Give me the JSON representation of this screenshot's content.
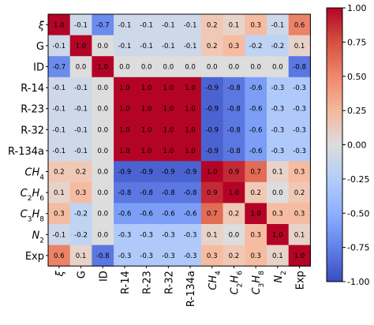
{
  "chart_data": {
    "type": "heatmap",
    "title": "",
    "xlabel": "",
    "ylabel": "",
    "row_labels": [
      "ξ",
      "G",
      "ID",
      "R-14",
      "R-23",
      "R-32",
      "R-134a",
      "CH4",
      "C2H6",
      "C3H8",
      "N2",
      "Exp"
    ],
    "col_labels": [
      "ξ",
      "G",
      "ID",
      "R-14",
      "R-23",
      "R-32",
      "R-134a",
      "CH4",
      "C2H6",
      "C3H8",
      "N2",
      "Exp"
    ],
    "matrix": [
      [
        1.0,
        -0.1,
        -0.7,
        -0.1,
        -0.1,
        -0.1,
        -0.1,
        0.2,
        0.1,
        0.3,
        -0.1,
        0.6
      ],
      [
        -0.1,
        1.0,
        -0.0,
        -0.1,
        -0.1,
        -0.1,
        -0.1,
        0.2,
        0.3,
        -0.2,
        -0.2,
        0.1
      ],
      [
        -0.7,
        -0.0,
        1.0,
        0.0,
        0.0,
        0.0,
        0.0,
        -0.0,
        -0.0,
        -0.0,
        0.0,
        -0.8
      ],
      [
        -0.1,
        -0.1,
        0.0,
        1.0,
        1.0,
        1.0,
        1.0,
        -0.9,
        -0.8,
        -0.6,
        -0.3,
        -0.3
      ],
      [
        -0.1,
        -0.1,
        0.0,
        1.0,
        1.0,
        1.0,
        1.0,
        -0.9,
        -0.8,
        -0.6,
        -0.3,
        -0.3
      ],
      [
        -0.1,
        -0.1,
        0.0,
        1.0,
        1.0,
        1.0,
        1.0,
        -0.9,
        -0.8,
        -0.6,
        -0.3,
        -0.3
      ],
      [
        -0.1,
        -0.1,
        0.0,
        1.0,
        1.0,
        1.0,
        1.0,
        -0.9,
        -0.8,
        -0.6,
        -0.3,
        -0.3
      ],
      [
        0.2,
        0.2,
        -0.0,
        -0.9,
        -0.9,
        -0.9,
        -0.9,
        1.0,
        0.9,
        0.7,
        0.1,
        0.3
      ],
      [
        0.1,
        0.3,
        -0.0,
        -0.8,
        -0.8,
        -0.8,
        -0.8,
        0.9,
        1.0,
        0.2,
        -0.0,
        0.2
      ],
      [
        0.3,
        -0.2,
        -0.0,
        -0.6,
        -0.6,
        -0.6,
        -0.6,
        0.7,
        0.2,
        1.0,
        0.3,
        0.3
      ],
      [
        -0.1,
        -0.2,
        0.0,
        -0.3,
        -0.3,
        -0.3,
        -0.3,
        0.1,
        -0.0,
        0.3,
        1.0,
        0.1
      ],
      [
        0.6,
        0.1,
        -0.8,
        -0.3,
        -0.3,
        -0.3,
        -0.3,
        0.3,
        0.2,
        0.3,
        0.1,
        1.0
      ]
    ],
    "colorbar": {
      "colormap": "coolwarm",
      "vmin": -1.0,
      "vmax": 1.0,
      "ticks": [
        "1.00",
        "0.75",
        "0.50",
        "0.25",
        "0.00",
        "-0.25",
        "-0.50",
        "-0.75",
        "-1.00"
      ]
    },
    "colors": {
      "low": "#3b4cc0",
      "mid": "#dddddd",
      "high": "#b40426"
    }
  }
}
